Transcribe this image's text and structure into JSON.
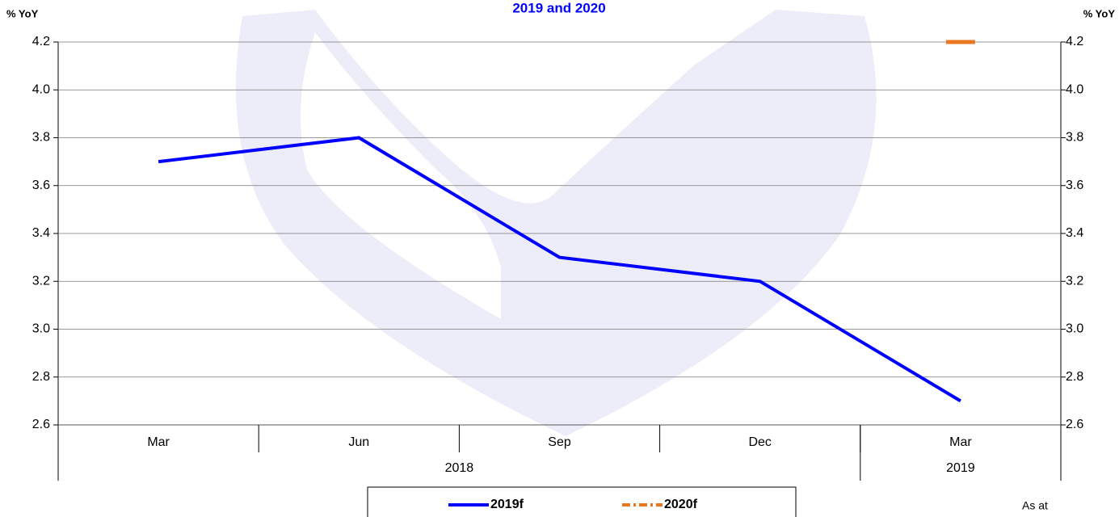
{
  "chart_data": {
    "type": "line",
    "title": "2019 and 2020",
    "y_label": "% YoY",
    "y2_label": "% YoY",
    "categories": [
      "Mar",
      "Jun",
      "Sep",
      "Dec",
      "Mar"
    ],
    "groups": [
      {
        "label": "2018",
        "span": 4
      },
      {
        "label": "2019",
        "span": 1
      }
    ],
    "series": [
      {
        "name": "2019f",
        "color": "#0000ff",
        "style": "solid",
        "values": [
          3.7,
          3.8,
          3.3,
          3.2,
          2.7
        ]
      },
      {
        "name": "2020f",
        "color": "#e87722",
        "style": "dashdot",
        "values": [
          null,
          null,
          null,
          null,
          4.2
        ]
      }
    ],
    "ylim": [
      2.6,
      4.2
    ],
    "yticks": [
      2.6,
      2.8,
      {
        "value": 3,
        "label": "3.0"
      },
      3.2,
      3.4,
      3.6,
      3.8,
      {
        "value": 4,
        "label": "4.0"
      },
      4.2
    ],
    "grid": true,
    "note": "As at"
  }
}
